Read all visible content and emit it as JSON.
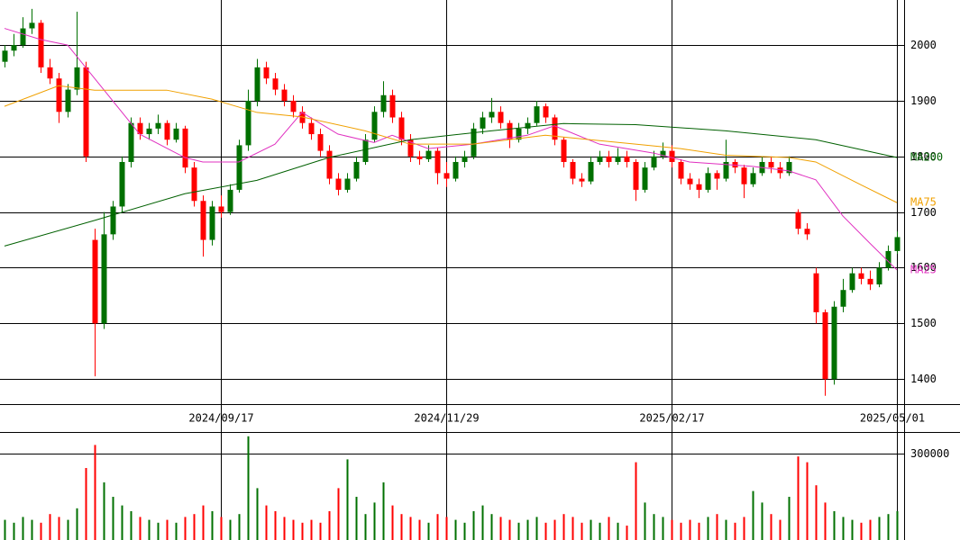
{
  "chart_data": {
    "type": "candlestick",
    "xticks": [
      {
        "value": 24,
        "label": "2024/09/17"
      },
      {
        "value": 49,
        "label": "2024/11/29"
      },
      {
        "value": 74,
        "label": "2025/02/17"
      },
      {
        "value": 99,
        "label": "2025/05/01"
      }
    ],
    "ylim": [
      1355,
      2081
    ],
    "yticks": [
      1400,
      1500,
      1600,
      1700,
      1800,
      1900,
      2000
    ],
    "grid": true,
    "up_color": "#007000",
    "down_color": "#ff0000",
    "open": [
      1970,
      1990,
      2000,
      2030,
      2040,
      1960,
      1940,
      1880,
      1920,
      1960,
      1650,
      1500,
      1660,
      1710,
      1790,
      1860,
      1840,
      1850,
      1860,
      1830,
      1850,
      1780,
      1720,
      1650,
      1710,
      1700,
      1740,
      1820,
      1900,
      1960,
      1940,
      1920,
      1900,
      1880,
      1860,
      1840,
      1810,
      1760,
      1740,
      1760,
      1790,
      1830,
      1880,
      1910,
      1870,
      1830,
      1800,
      1795,
      1810,
      1770,
      1760,
      1790,
      1800,
      1850,
      1870,
      1880,
      1860,
      1830,
      1850,
      1860,
      1890,
      1870,
      1830,
      1790,
      1760,
      1755,
      1790,
      1800,
      1790,
      1800,
      1790,
      1740,
      1780,
      1800,
      1810,
      1790,
      1760,
      1750,
      1740,
      1770,
      1760,
      1790,
      1780,
      1750,
      1770,
      1790,
      1780,
      1770,
      1700,
      1670,
      1590,
      1520,
      1400,
      1530,
      1560,
      1590,
      1580,
      1570,
      1600,
      1630
    ],
    "high": [
      2000,
      2020,
      2050,
      2065,
      2045,
      1975,
      1950,
      1930,
      2060,
      1970,
      1670,
      1700,
      1720,
      1800,
      1870,
      1870,
      1860,
      1875,
      1865,
      1860,
      1855,
      1790,
      1730,
      1720,
      1730,
      1750,
      1830,
      1920,
      1975,
      1970,
      1950,
      1930,
      1910,
      1890,
      1870,
      1850,
      1820,
      1770,
      1770,
      1800,
      1840,
      1890,
      1935,
      1920,
      1880,
      1840,
      1810,
      1820,
      1815,
      1790,
      1800,
      1810,
      1860,
      1880,
      1905,
      1890,
      1865,
      1860,
      1870,
      1900,
      1895,
      1875,
      1835,
      1795,
      1770,
      1800,
      1810,
      1810,
      1815,
      1810,
      1795,
      1790,
      1810,
      1825,
      1820,
      1795,
      1770,
      1760,
      1780,
      1775,
      1830,
      1795,
      1785,
      1780,
      1800,
      1800,
      1790,
      1800,
      1705,
      1680,
      1600,
      1525,
      1540,
      1580,
      1600,
      1600,
      1595,
      1610,
      1640,
      1665
    ],
    "low": [
      1960,
      1980,
      1995,
      2020,
      1950,
      1930,
      1860,
      1870,
      1910,
      1790,
      1405,
      1490,
      1650,
      1700,
      1780,
      1830,
      1830,
      1840,
      1820,
      1825,
      1770,
      1710,
      1620,
      1640,
      1690,
      1695,
      1735,
      1810,
      1890,
      1930,
      1910,
      1890,
      1870,
      1850,
      1830,
      1800,
      1750,
      1730,
      1735,
      1755,
      1785,
      1825,
      1870,
      1860,
      1820,
      1790,
      1785,
      1790,
      1750,
      1745,
      1755,
      1780,
      1795,
      1840,
      1860,
      1850,
      1815,
      1825,
      1840,
      1855,
      1860,
      1820,
      1780,
      1750,
      1745,
      1750,
      1785,
      1780,
      1785,
      1780,
      1720,
      1735,
      1775,
      1795,
      1780,
      1750,
      1740,
      1725,
      1735,
      1740,
      1755,
      1770,
      1725,
      1745,
      1765,
      1770,
      1760,
      1765,
      1660,
      1650,
      1500,
      1370,
      1390,
      1520,
      1555,
      1570,
      1560,
      1565,
      1595,
      1625
    ],
    "close": [
      1990,
      2000,
      2030,
      2040,
      1960,
      1940,
      1880,
      1920,
      1960,
      1800,
      1500,
      1660,
      1710,
      1790,
      1860,
      1840,
      1850,
      1860,
      1830,
      1850,
      1780,
      1720,
      1650,
      1710,
      1700,
      1740,
      1820,
      1900,
      1960,
      1940,
      1920,
      1900,
      1880,
      1860,
      1840,
      1810,
      1760,
      1740,
      1760,
      1790,
      1830,
      1880,
      1910,
      1870,
      1830,
      1800,
      1795,
      1810,
      1770,
      1760,
      1790,
      1800,
      1850,
      1870,
      1880,
      1860,
      1830,
      1850,
      1860,
      1890,
      1870,
      1830,
      1790,
      1760,
      1755,
      1790,
      1800,
      1790,
      1800,
      1790,
      1740,
      1780,
      1800,
      1810,
      1790,
      1760,
      1750,
      1740,
      1770,
      1760,
      1790,
      1780,
      1750,
      1770,
      1790,
      1780,
      1770,
      1790,
      1670,
      1660,
      1520,
      1400,
      1530,
      1560,
      1590,
      1580,
      1570,
      1600,
      1630,
      1655
    ],
    "ma": [
      {
        "name": "MA25",
        "color": "#e030c0",
        "x": [
          0,
          4,
          7,
          11,
          15,
          20,
          22,
          26,
          30,
          33,
          37,
          41,
          43,
          47,
          52,
          58,
          61,
          66,
          72,
          76,
          83,
          87,
          90,
          93,
          96,
          99
        ],
        "values": [
          2030,
          2010,
          2000,
          1920,
          1840,
          1798,
          1790,
          1790,
          1822,
          1879,
          1840,
          1825,
          1838,
          1814,
          1822,
          1838,
          1855,
          1822,
          1806,
          1790,
          1782,
          1774,
          1758,
          1693,
          1644,
          1596
        ]
      },
      {
        "name": "MA75",
        "color": "#f0a000",
        "x": [
          0,
          6,
          10,
          18,
          23,
          28,
          33,
          40,
          45,
          52,
          60,
          65,
          70,
          75,
          80,
          87,
          90,
          95,
          99
        ],
        "values": [
          1890,
          1927,
          1919,
          1919,
          1903,
          1879,
          1871,
          1846,
          1822,
          1822,
          1838,
          1830,
          1822,
          1814,
          1802,
          1798,
          1790,
          1749,
          1717
        ]
      },
      {
        "name": "MA200",
        "color": "#006000",
        "x": [
          0,
          10,
          20,
          28,
          36,
          45,
          54,
          62,
          70,
          80,
          90,
          99
        ],
        "values": [
          1639,
          1685,
          1733,
          1757,
          1798,
          1830,
          1846,
          1859,
          1857,
          1846,
          1830,
          1798
        ]
      }
    ],
    "volume": {
      "ylim": [
        0,
        375000
      ],
      "yticks": [
        300000
      ],
      "values": [
        70000,
        60000,
        80000,
        70000,
        60000,
        90000,
        80000,
        70000,
        110000,
        250000,
        330000,
        200000,
        150000,
        120000,
        100000,
        80000,
        70000,
        60000,
        70000,
        60000,
        80000,
        90000,
        120000,
        100000,
        80000,
        70000,
        90000,
        360000,
        180000,
        120000,
        100000,
        80000,
        70000,
        60000,
        70000,
        60000,
        100000,
        180000,
        280000,
        150000,
        90000,
        130000,
        200000,
        120000,
        90000,
        80000,
        70000,
        60000,
        90000,
        80000,
        70000,
        60000,
        100000,
        120000,
        90000,
        80000,
        70000,
        60000,
        70000,
        80000,
        60000,
        70000,
        90000,
        80000,
        60000,
        70000,
        60000,
        80000,
        60000,
        50000,
        270000,
        130000,
        90000,
        80000,
        70000,
        60000,
        70000,
        60000,
        80000,
        90000,
        70000,
        60000,
        80000,
        170000,
        130000,
        90000,
        70000,
        150000,
        290000,
        270000,
        190000,
        130000,
        100000,
        80000,
        70000,
        60000,
        70000,
        80000,
        90000,
        100000
      ]
    }
  }
}
